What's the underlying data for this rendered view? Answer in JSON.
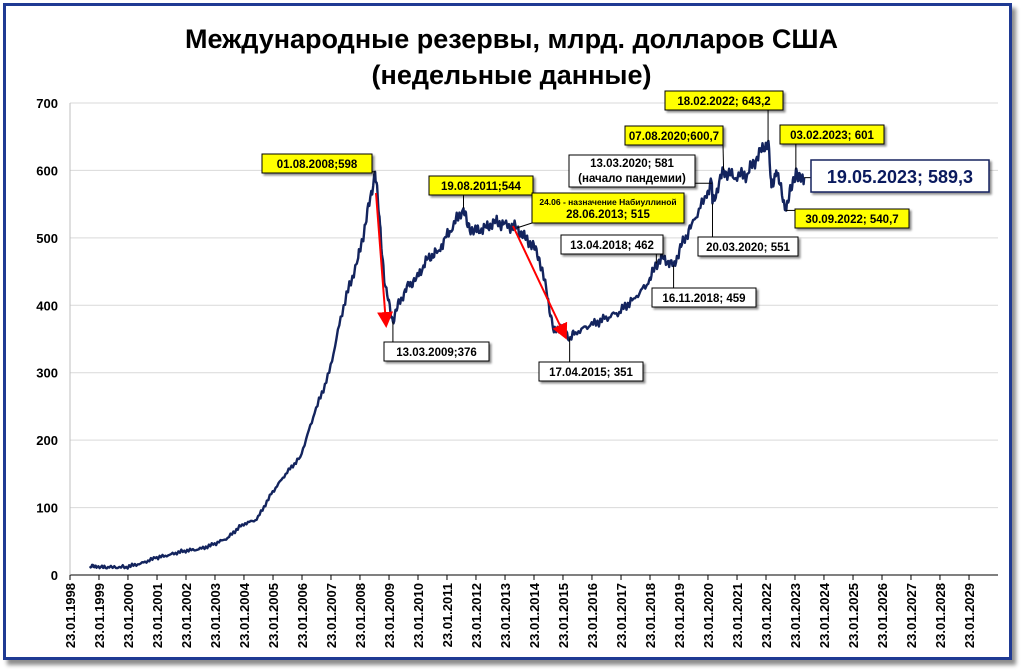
{
  "title_line1": "Международные резервы, млрд. долларов США",
  "title_line2": "(недельные данные)",
  "colors": {
    "line": "#13245e",
    "highlight_box": "#ffff00",
    "arrow": "#ff0000",
    "grid": "#d9d9d9",
    "frame": "#1f3a93"
  },
  "chart_data": {
    "type": "line",
    "title": "Международные резервы, млрд. долларов США (недельные данные)",
    "xlabel": "",
    "ylabel": "",
    "ylim": [
      0,
      700
    ],
    "yticks": [
      0,
      100,
      200,
      300,
      400,
      500,
      600,
      700
    ],
    "xlim": [
      "1998-01-23",
      "2030-01-23"
    ],
    "xtick_labels": [
      "23.01.1998",
      "23.01.1999",
      "23.01.2000",
      "23.01.2001",
      "23.01.2002",
      "23.01.2003",
      "23.01.2004",
      "23.01.2005",
      "23.01.2006",
      "23.01.2007",
      "23.01.2008",
      "23.01.2009",
      "23.01.2010",
      "23.01.2011",
      "23.01.2012",
      "23.01.2013",
      "23.01.2014",
      "23.01.2015",
      "23.01.2016",
      "23.01.2017",
      "23.01.2018",
      "23.01.2019",
      "23.01.2020",
      "23.01.2021",
      "23.01.2022",
      "23.01.2023",
      "23.01.2024",
      "23.01.2025",
      "23.01.2026",
      "23.01.2027",
      "23.01.2028",
      "23.01.2029"
    ],
    "grid": "horizontal",
    "series": [
      {
        "x": [
          "1998-10-01",
          "1999-01-01",
          "1999-06-01",
          "2000-01-01",
          "2000-07-01",
          "2001-01-01",
          "2001-07-01",
          "2002-01-01",
          "2002-07-01",
          "2003-01-01",
          "2003-07-01",
          "2004-01-01",
          "2004-07-01",
          "2005-01-01",
          "2005-07-01",
          "2006-01-01",
          "2006-07-01",
          "2007-01-01",
          "2007-07-01",
          "2008-01-01",
          "2008-04-01",
          "2008-08-01",
          "2008-10-01",
          "2008-12-01",
          "2009-03-13",
          "2009-06-01",
          "2009-10-01",
          "2010-01-01",
          "2010-06-01",
          "2010-10-01",
          "2011-03-01",
          "2011-08-19",
          "2011-10-01",
          "2012-01-01",
          "2012-06-01",
          "2012-10-01",
          "2013-01-01",
          "2013-06-28",
          "2013-10-01",
          "2014-01-01",
          "2014-04-01",
          "2014-07-01",
          "2014-10-01",
          "2015-01-01",
          "2015-04-17",
          "2015-07-01",
          "2016-01-01",
          "2016-07-01",
          "2017-01-01",
          "2017-07-01",
          "2018-01-01",
          "2018-04-13",
          "2018-07-01",
          "2018-11-16",
          "2019-03-01",
          "2019-07-01",
          "2020-01-01",
          "2020-03-13",
          "2020-03-20",
          "2020-08-07",
          "2020-12-01",
          "2021-06-01",
          "2021-10-01",
          "2022-02-18",
          "2022-04-01",
          "2022-06-01",
          "2022-09-30",
          "2022-12-01",
          "2023-02-03",
          "2023-03-10",
          "2023-05-19"
        ],
        "values": [
          13,
          12,
          11,
          12,
          17,
          25,
          30,
          36,
          38,
          45,
          55,
          75,
          82,
          120,
          150,
          175,
          240,
          300,
          400,
          470,
          520,
          598,
          520,
          430,
          376,
          405,
          430,
          440,
          470,
          480,
          510,
          544,
          520,
          510,
          515,
          525,
          520,
          515,
          500,
          490,
          470,
          420,
          360,
          370,
          351,
          360,
          370,
          380,
          390,
          410,
          432,
          462,
          470,
          459,
          490,
          520,
          562,
          581,
          551,
          600.7,
          590,
          595,
          620,
          643.2,
          575,
          600,
          540.7,
          570,
          601,
          585,
          589.3
        ]
      }
    ],
    "annotations": [
      {
        "x": "2008-08-01",
        "label": "01.08.2008;598",
        "highlight": true
      },
      {
        "x": "2009-03-13",
        "label": "13.03.2009;376",
        "highlight": false
      },
      {
        "x": "2011-08-19",
        "label": "19.08.2011;544",
        "highlight": true
      },
      {
        "x": "2013-06-28",
        "label_line1": "24.06 - назначение Набиуллиной",
        "label_line2": "28.06.2013; 515",
        "highlight": true
      },
      {
        "x": "2015-04-17",
        "label": "17.04.2015; 351",
        "highlight": false
      },
      {
        "x": "2018-04-13",
        "label": "13.04.2018; 462",
        "highlight": false
      },
      {
        "x": "2018-11-16",
        "label": "16.11.2018; 459",
        "highlight": false
      },
      {
        "x": "2020-03-13",
        "label_line1": "13.03.2020; 581",
        "label_line2": "(начало пандемии)",
        "highlight": false
      },
      {
        "x": "2020-03-20",
        "label": "20.03.2020; 551",
        "highlight": false
      },
      {
        "x": "2020-08-07",
        "label": "07.08.2020;600,7",
        "highlight": true
      },
      {
        "x": "2022-02-18",
        "label": "18.02.2022; 643,2",
        "highlight": true
      },
      {
        "x": "2023-02-03",
        "label": "03.02.2023; 601",
        "highlight": true
      },
      {
        "x": "2022-09-30",
        "label": "30.09.2022; 540,7",
        "highlight": true
      },
      {
        "x": "2023-05-19",
        "label": "19.05.2023; 589,3",
        "highlight": false,
        "emphasis": true
      }
    ]
  }
}
